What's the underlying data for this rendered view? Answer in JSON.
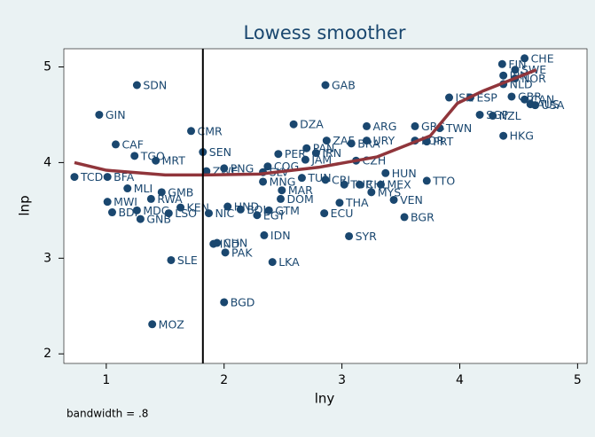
{
  "chart_data": {
    "type": "scatter",
    "title": "Lowess smoother",
    "xlabel": "lny",
    "ylabel": "lnp",
    "note": "bandwidth = .8",
    "xlim": [
      0.64,
      5.08
    ],
    "ylim": [
      1.9,
      5.19
    ],
    "xticks": [
      1,
      2,
      3,
      4,
      5
    ],
    "yticks": [
      2,
      3,
      4,
      5
    ],
    "xline": 1.82,
    "color": "#1a476f",
    "labels": [
      "SDN",
      "GIN",
      "CMR",
      "CAF",
      "TGO",
      "MRT",
      "TCD",
      "BFA",
      "MLI",
      "GMB",
      "RWA",
      "MWI",
      "BDI",
      "MDG",
      "GNB",
      "LSO",
      "KEN",
      "NIC",
      "SEN",
      "ZWE",
      "PNG",
      "HND",
      "BOL",
      "EGY",
      "GTM",
      "IDN",
      "IND",
      "CHN",
      "PAK",
      "SLE",
      "LKA",
      "BGD",
      "MOZ",
      "COG",
      "SLV",
      "MNG",
      "PER",
      "JAM",
      "PAN",
      "IRN",
      "MAR",
      "DOM",
      "TUN",
      "GAB",
      "DZA",
      "ZAF",
      "BRA",
      "URY",
      "ARG",
      "CRI",
      "ECU",
      "TUR",
      "THA",
      "SYR",
      "CZH",
      "CHL",
      "MEX",
      "HUN",
      "MYS",
      "VEN",
      "BGR",
      "TTO",
      "GRC",
      "TWN",
      "KOR",
      "PRT",
      "ISR",
      "ESP",
      "SGP",
      "NZL",
      "HKG",
      "CHE",
      "FIN",
      "SWE",
      "JPN",
      "NOR",
      "NLD",
      "AUS",
      "CAN",
      "USA",
      "GBR"
    ],
    "x": [
      1.26,
      0.94,
      1.72,
      1.08,
      1.24,
      1.42,
      0.73,
      1.01,
      1.18,
      1.47,
      1.38,
      1.01,
      1.05,
      1.26,
      1.29,
      1.53,
      1.63,
      1.87,
      1.82,
      1.85,
      2.0,
      2.03,
      2.14,
      2.28,
      2.38,
      2.34,
      1.91,
      1.94,
      2.01,
      1.55,
      2.41,
      2.0,
      1.39,
      2.37,
      2.33,
      2.33,
      2.46,
      2.69,
      2.7,
      2.78,
      2.49,
      2.48,
      2.66,
      2.86,
      2.59,
      2.87,
      3.08,
      3.21,
      3.21,
      2.86,
      2.85,
      3.02,
      2.98,
      3.06,
      3.12,
      3.15,
      3.33,
      3.37,
      3.25,
      3.44,
      3.53,
      3.72,
      3.62,
      3.83,
      3.62,
      3.72,
      3.91,
      4.09,
      4.17,
      4.28,
      4.37,
      4.55,
      4.36,
      4.47,
      4.37,
      4.47,
      4.37,
      4.6,
      4.55,
      4.64,
      4.44
    ],
    "y": [
      4.81,
      4.5,
      4.33,
      4.19,
      4.07,
      4.02,
      3.85,
      3.85,
      3.73,
      3.69,
      3.62,
      3.59,
      3.48,
      3.5,
      3.41,
      3.47,
      3.53,
      3.47,
      4.11,
      3.91,
      3.94,
      3.54,
      3.51,
      3.45,
      3.5,
      3.24,
      3.15,
      3.16,
      3.06,
      2.98,
      2.96,
      2.54,
      2.31,
      3.96,
      3.9,
      3.8,
      4.09,
      4.03,
      4.15,
      4.1,
      3.71,
      3.62,
      3.84,
      4.81,
      4.4,
      4.23,
      4.2,
      4.23,
      4.38,
      3.82,
      3.47,
      3.77,
      3.58,
      3.23,
      4.02,
      3.77,
      3.77,
      3.89,
      3.69,
      3.61,
      3.43,
      3.81,
      4.38,
      4.36,
      4.23,
      4.22,
      4.68,
      4.68,
      4.5,
      4.49,
      4.28,
      5.09,
      5.03,
      4.97,
      4.91,
      4.88,
      4.82,
      4.61,
      4.66,
      4.6,
      4.69
    ],
    "lowess": {
      "color": "#90353b",
      "x": [
        0.73,
        1.0,
        1.5,
        1.82,
        2.3,
        2.8,
        3.3,
        3.75,
        3.98,
        4.2,
        4.65
      ],
      "y": [
        4.0,
        3.92,
        3.87,
        3.87,
        3.88,
        3.95,
        4.06,
        4.28,
        4.62,
        4.75,
        4.97
      ]
    }
  }
}
